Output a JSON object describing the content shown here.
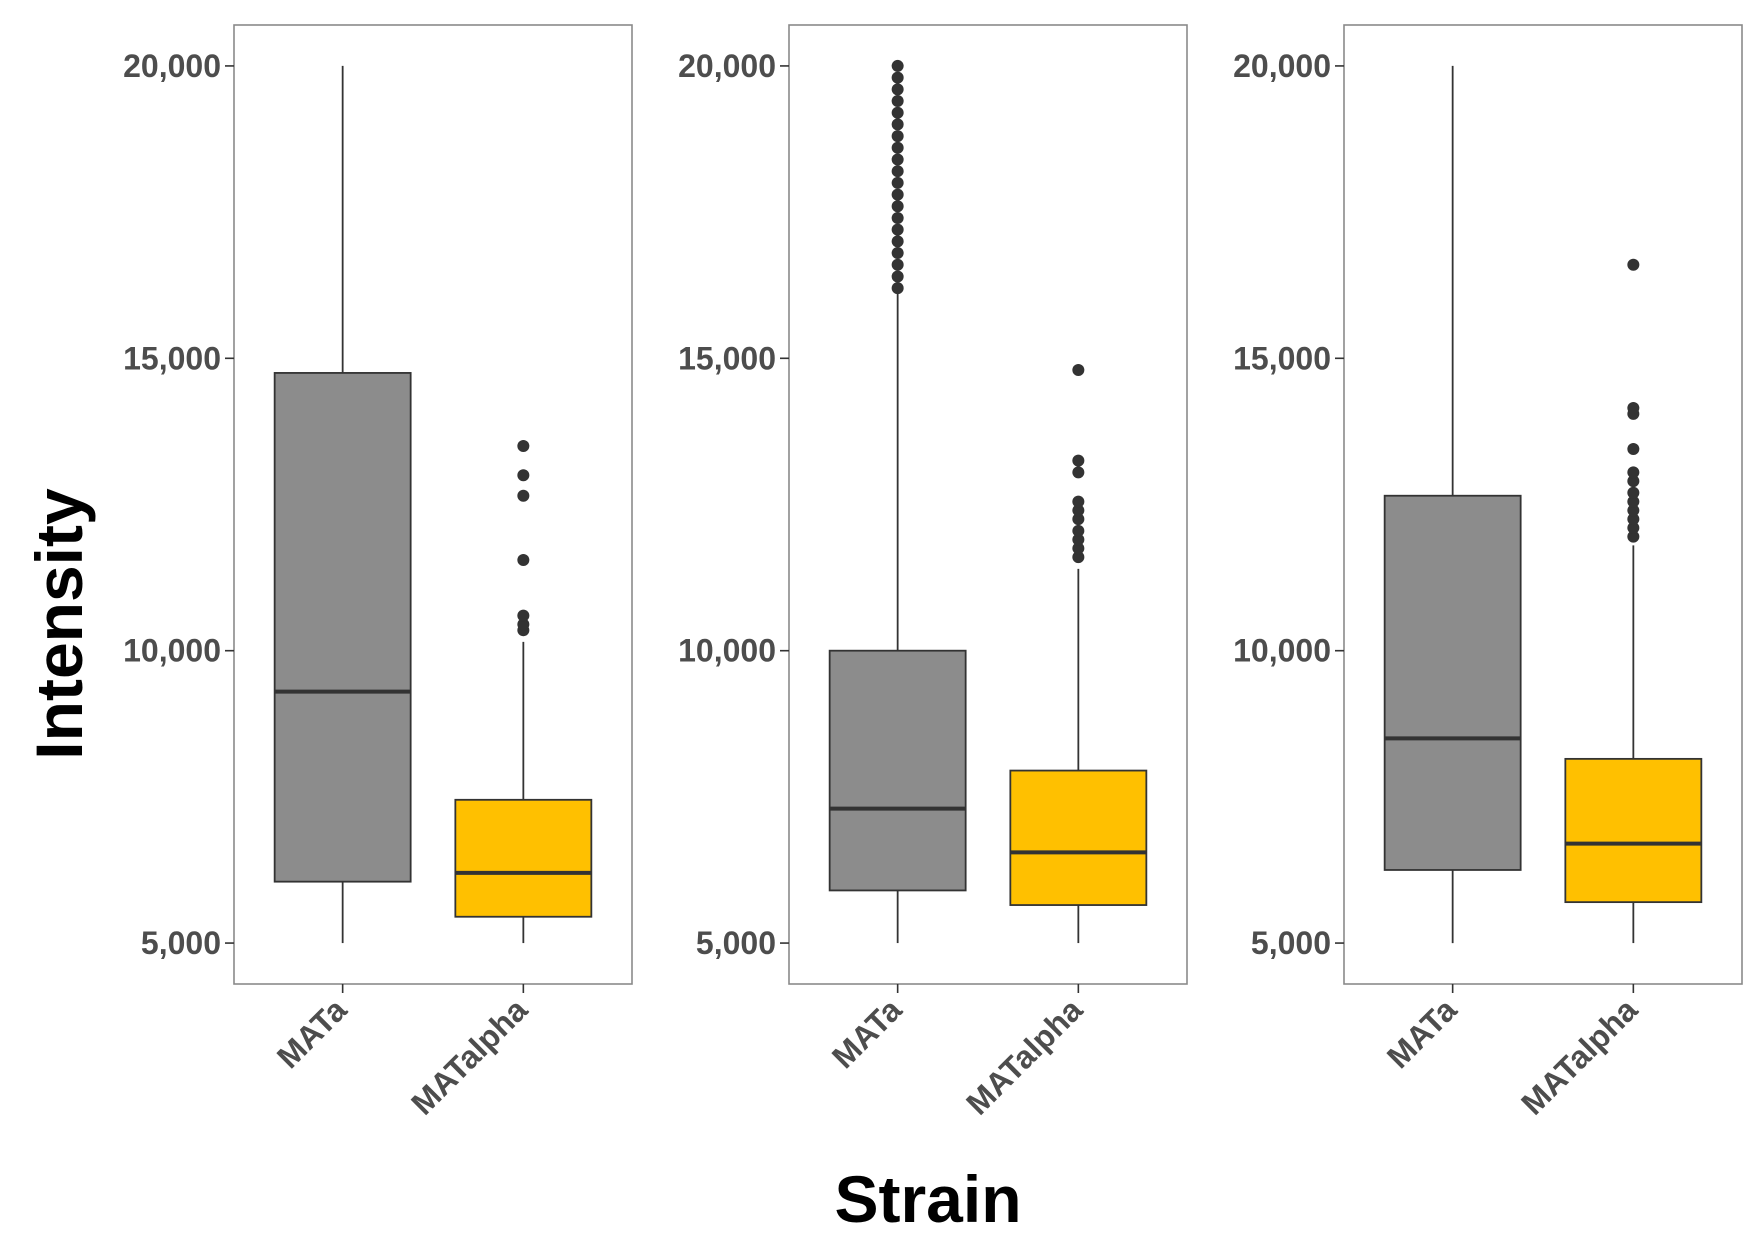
{
  "chart_data": {
    "type": "box",
    "xlabel": "Strain",
    "ylabel": "Intensity",
    "ylim": [
      4300,
      20700
    ],
    "yticks": [
      5000,
      10000,
      15000,
      20000
    ],
    "ytick_labels": [
      "5,000",
      "10,000",
      "15,000",
      "20,000"
    ],
    "categories": [
      "MATa",
      "MATalpha"
    ],
    "colors": {
      "MATa": "#8c8c8c",
      "MATalpha": "#ffc000",
      "outline": "#333333",
      "panel_border": "#8a8a8a"
    },
    "panels": [
      {
        "boxes": [
          {
            "category": "MATa",
            "whisker_low": 5000,
            "q1": 6050,
            "median": 9300,
            "q3": 14750,
            "whisker_high": 20000,
            "outliers": []
          },
          {
            "category": "MATalpha",
            "whisker_low": 5000,
            "q1": 5450,
            "median": 6200,
            "q3": 7450,
            "whisker_high": 10150,
            "outliers": [
              10350,
              10450,
              10600,
              11550,
              12650,
              13000,
              13500
            ]
          }
        ]
      },
      {
        "boxes": [
          {
            "category": "MATa",
            "whisker_low": 5000,
            "q1": 5900,
            "median": 7300,
            "q3": 10000,
            "whisker_high": 16100,
            "outliers": [
              16200,
              16400,
              16600,
              16800,
              17000,
              17200,
              17400,
              17600,
              17800,
              18000,
              18200,
              18400,
              18600,
              18800,
              19000,
              19200,
              19400,
              19600,
              19800,
              20000
            ]
          },
          {
            "category": "MATalpha",
            "whisker_low": 5000,
            "q1": 5650,
            "median": 6550,
            "q3": 7950,
            "whisker_high": 11400,
            "outliers": [
              11600,
              11750,
              11900,
              12050,
              12250,
              12400,
              12550,
              13050,
              13250,
              14800
            ]
          }
        ]
      },
      {
        "boxes": [
          {
            "category": "MATa",
            "whisker_low": 5000,
            "q1": 6250,
            "median": 8500,
            "q3": 12650,
            "whisker_high": 20000,
            "outliers": []
          },
          {
            "category": "MATalpha",
            "whisker_low": 5000,
            "q1": 5700,
            "median": 6700,
            "q3": 8150,
            "whisker_high": 11800,
            "outliers": [
              11950,
              12100,
              12250,
              12400,
              12550,
              12700,
              12900,
              13050,
              13450,
              14050,
              14150,
              16600
            ]
          }
        ]
      }
    ]
  }
}
